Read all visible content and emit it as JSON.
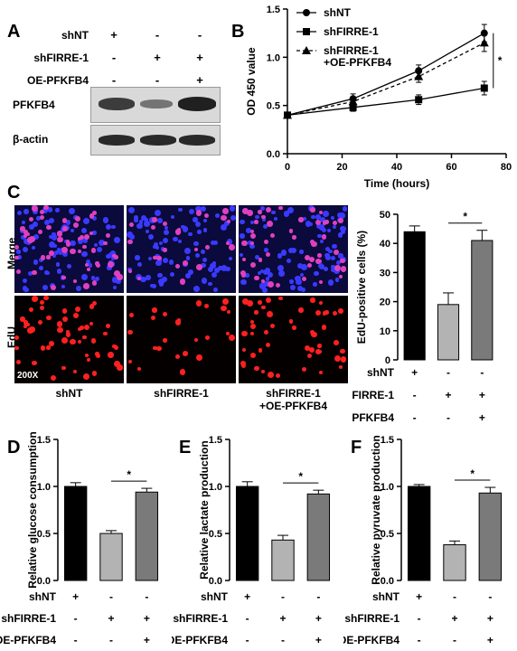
{
  "panel_labels": {
    "a": "A",
    "b": "B",
    "c": "C",
    "d": "D",
    "e": "E",
    "f": "F"
  },
  "conditions": {
    "shNT": "shNT",
    "shFIRRE1": "shFIRRE-1",
    "oe": "OE-PFKFB4"
  },
  "western": {
    "rows": [
      {
        "label": "shNT",
        "signs": [
          "+",
          "-",
          "-"
        ]
      },
      {
        "label": "shFIRRE-1",
        "signs": [
          "-",
          "+",
          "+"
        ]
      },
      {
        "label": "OE-PFKFB4",
        "signs": [
          "-",
          "-",
          "+"
        ]
      }
    ],
    "bands": [
      {
        "label": "PFKFB4",
        "intensity": [
          0.85,
          0.55,
          1.0
        ]
      },
      {
        "label": "β-actin",
        "intensity": [
          0.95,
          0.95,
          0.95
        ]
      }
    ],
    "colors": {
      "band": "#202020",
      "membrane": "#d9d9d9"
    }
  },
  "micro": {
    "row_labels": [
      "Merge",
      "EdU"
    ],
    "magnification": "200X",
    "captions": [
      [
        "shNT"
      ],
      [
        "shFIRRE-1"
      ],
      [
        "shFIRRE-1",
        "+OE-PFKFB4"
      ]
    ],
    "density": [
      1.0,
      0.45,
      0.9
    ],
    "colors": {
      "nuclei_blue": "#3a3aff",
      "nuclei_red": "#ff2020",
      "merge_pink": "#e040c0"
    }
  },
  "sign_rows": [
    {
      "label": "shNT",
      "signs": [
        "+",
        "-",
        "-"
      ]
    },
    {
      "label": "shFIRRE-1",
      "signs": [
        "-",
        "+",
        "+"
      ]
    },
    {
      "label": "OE-PFKFB4",
      "signs": [
        "-",
        "-",
        "+"
      ]
    }
  ],
  "chart_data": [
    {
      "id": "B",
      "type": "line",
      "xlabel": "Time (hours)",
      "ylabel": "OD 450 value",
      "xlim": [
        0,
        80
      ],
      "ylim": [
        0,
        1.5
      ],
      "xticks": [
        0,
        20,
        40,
        60,
        80
      ],
      "yticks": [
        0.0,
        0.5,
        1.0,
        1.5
      ],
      "x": [
        0,
        24,
        48,
        72
      ],
      "legend_position": "top-left",
      "significance": "*",
      "series": [
        {
          "name": "shNT",
          "values": [
            0.4,
            0.57,
            0.86,
            1.25
          ],
          "errors": [
            0.03,
            0.05,
            0.06,
            0.09
          ],
          "marker": "circle",
          "dash": "solid"
        },
        {
          "name": "shFIRRE-1",
          "values": [
            0.4,
            0.48,
            0.56,
            0.68
          ],
          "errors": [
            0.03,
            0.04,
            0.05,
            0.07
          ],
          "marker": "square",
          "dash": "solid"
        },
        {
          "name": "shFIRRE-1\n+OE-PFKFB4",
          "legend_lines": [
            "shFIRRE-1",
            "+OE-PFKFB4"
          ],
          "values": [
            0.4,
            0.54,
            0.8,
            1.15
          ],
          "errors": [
            0.03,
            0.04,
            0.06,
            0.09
          ],
          "marker": "triangle",
          "dash": "dashed"
        }
      ]
    },
    {
      "id": "C",
      "type": "bar",
      "ylabel": "EdU-positive cells (%)",
      "ylim": [
        0,
        50
      ],
      "yticks": [
        0,
        10,
        20,
        30,
        40,
        50
      ],
      "values": [
        44,
        19,
        41
      ],
      "errors": [
        2.0,
        4.0,
        3.5
      ],
      "colors": [
        "#000000",
        "#b3b3b3",
        "#7a7a7a"
      ],
      "significance": "*"
    },
    {
      "id": "D",
      "type": "bar",
      "ylabel": "Relative glucose consumption",
      "ylim": [
        0,
        1.5
      ],
      "yticks": [
        0.0,
        0.5,
        1.0,
        1.5
      ],
      "values": [
        1.0,
        0.5,
        0.94
      ],
      "errors": [
        0.04,
        0.03,
        0.04
      ],
      "colors": [
        "#000000",
        "#b3b3b3",
        "#7a7a7a"
      ],
      "significance": "*"
    },
    {
      "id": "E",
      "type": "bar",
      "ylabel": "Relative lactate production",
      "ylim": [
        0,
        1.5
      ],
      "yticks": [
        0.0,
        0.5,
        1.0,
        1.5
      ],
      "values": [
        1.0,
        0.43,
        0.92
      ],
      "errors": [
        0.05,
        0.05,
        0.04
      ],
      "colors": [
        "#000000",
        "#b3b3b3",
        "#7a7a7a"
      ],
      "significance": "*"
    },
    {
      "id": "F",
      "type": "bar",
      "ylabel": "Relative pyruvate production",
      "ylim": [
        0,
        1.5
      ],
      "yticks": [
        0.0,
        0.5,
        1.0,
        1.5
      ],
      "values": [
        1.0,
        0.38,
        0.93
      ],
      "errors": [
        0.02,
        0.04,
        0.06
      ],
      "colors": [
        "#000000",
        "#b3b3b3",
        "#7a7a7a"
      ],
      "significance": "*"
    }
  ]
}
